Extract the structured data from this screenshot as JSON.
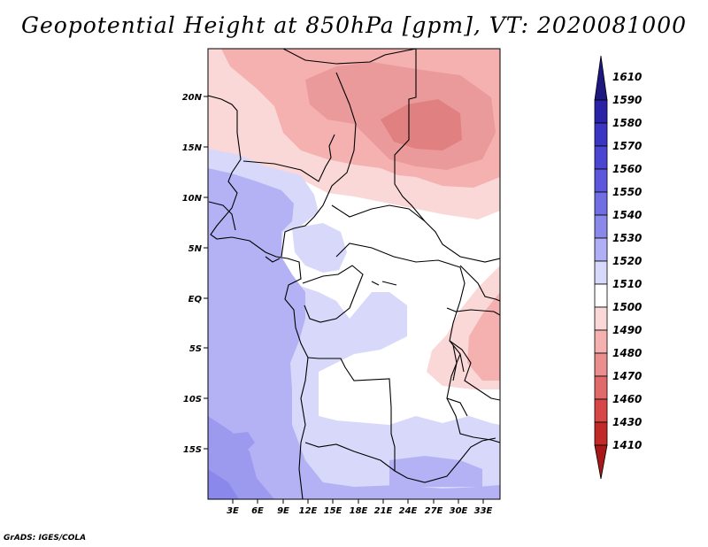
{
  "title": "Geopotential Height at 850hPa [gpm], VT: 2020081000",
  "credit": "GrADS: IGES/COLA",
  "map": {
    "lat_labels": [
      "20N",
      "15N",
      "10N",
      "5N",
      "EQ",
      "5S",
      "10S",
      "15S"
    ],
    "lon_labels": [
      "3E",
      "6E",
      "9E",
      "12E",
      "15E",
      "18E",
      "21E",
      "24E",
      "27E",
      "30E",
      "33E"
    ]
  },
  "colorbar": {
    "levels": [
      "1610",
      "1590",
      "1580",
      "1570",
      "1560",
      "1550",
      "1540",
      "1530",
      "1520",
      "1510",
      "1500",
      "1490",
      "1480",
      "1470",
      "1460",
      "1430",
      "1410"
    ],
    "colors": [
      "#1d1880",
      "#2a23a8",
      "#3b35c4",
      "#4b46d2",
      "#5c57dc",
      "#716ee4",
      "#8b88ec",
      "#b0aef4",
      "#d8d8fa",
      "#ffffff",
      "#fbd8d8",
      "#f5b0b0",
      "#ea8e8e",
      "#e06a6a",
      "#d84747",
      "#c22a2a",
      "#a81818"
    ]
  }
}
